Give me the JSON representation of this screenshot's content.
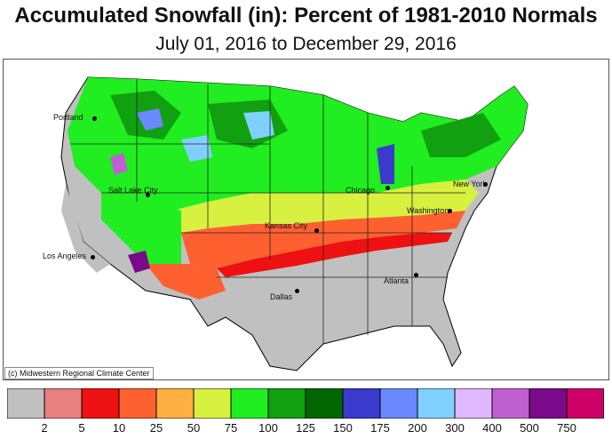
{
  "title": "Accumulated Snowfall (in): Percent of 1981-2010 Normals",
  "subtitle": "July 01, 2016 to December 29, 2016",
  "credit": "(c) Midwestern Regional Climate Center",
  "cities": [
    {
      "name": "Portland"
    },
    {
      "name": "Salt Lake City"
    },
    {
      "name": "Los Angeles"
    },
    {
      "name": "Kansas City"
    },
    {
      "name": "Dallas"
    },
    {
      "name": "Chicago"
    },
    {
      "name": "Atlanta"
    },
    {
      "name": "Washington"
    },
    {
      "name": "New York"
    }
  ],
  "legend": {
    "colors": [
      "#c0c0c0",
      "#e88080",
      "#ee1111",
      "#ff6030",
      "#ffb040",
      "#d8f040",
      "#20ee20",
      "#10a010",
      "#006600",
      "#3a3acc",
      "#6a88ff",
      "#80d0ff",
      "#e0b8ff",
      "#c060d0",
      "#7a0a8a",
      "#cc0066"
    ],
    "ticks": [
      "2",
      "5",
      "10",
      "25",
      "50",
      "75",
      "100",
      "125",
      "150",
      "175",
      "200",
      "300",
      "400",
      "500",
      "750"
    ]
  },
  "palette": {
    "none": "#c0c0c0",
    "low_red": "#ee1111",
    "orange": "#ff6030",
    "yellow": "#ffb040",
    "lime": "#d8f040",
    "green": "#20ee20",
    "dkgreen": "#10a010",
    "blue": "#6a88ff",
    "ltblue": "#80d0ff",
    "purple": "#c060d0"
  }
}
